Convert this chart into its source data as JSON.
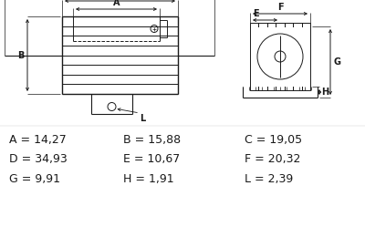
{
  "background_color": "#ffffff",
  "dim_rows": [
    [
      [
        "A",
        "14,27"
      ],
      [
        "B",
        "15,88"
      ],
      [
        "C",
        "19,05"
      ]
    ],
    [
      [
        "D",
        "34,93"
      ],
      [
        "E",
        "10,67"
      ],
      [
        "F",
        "20,32"
      ]
    ],
    [
      [
        "G",
        "9,91"
      ],
      [
        "H",
        "1,91"
      ],
      [
        "L",
        "2,39"
      ]
    ]
  ],
  "line_color": "#1a1a1a",
  "text_color": "#1a1a1a",
  "dim_fontsize": 9.0
}
